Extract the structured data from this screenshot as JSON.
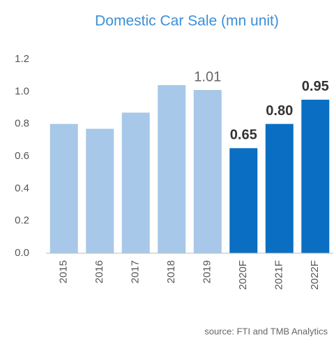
{
  "chart_data": {
    "type": "bar",
    "title": "Domestic Car Sale (mn unit)",
    "categories": [
      "2015",
      "2016",
      "2017",
      "2018",
      "2019",
      "2020F",
      "2021F",
      "2022F"
    ],
    "values": [
      0.8,
      0.77,
      0.87,
      1.04,
      1.01,
      0.65,
      0.8,
      0.95
    ],
    "value_labels": [
      null,
      null,
      null,
      null,
      "1.01",
      "0.65",
      "0.80",
      "0.95"
    ],
    "colors": [
      "#a7c8e8",
      "#a7c8e8",
      "#a7c8e8",
      "#a7c8e8",
      "#a7c8e8",
      "#0a6fc2",
      "#0a6fc2",
      "#0a6fc2"
    ],
    "ylim": [
      0,
      1.2
    ],
    "yticks": [
      {
        "value": 0,
        "label": "0.0"
      },
      0.2,
      0.4,
      0.6,
      0.8,
      {
        "value": 1,
        "label": "1.0"
      },
      1.2
    ],
    "grid": false,
    "source": "source: FTI and TMB Analytics"
  }
}
